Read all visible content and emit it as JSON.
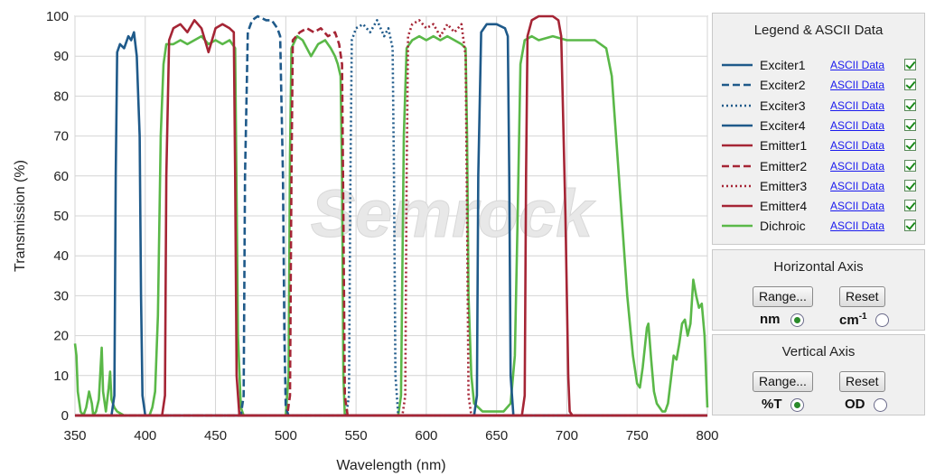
{
  "chart_data": {
    "type": "line",
    "title": "",
    "xlabel": "Wavelength (nm)",
    "ylabel": "Transmission (%)",
    "xlim": [
      350,
      800
    ],
    "ylim": [
      0,
      100
    ],
    "x_ticks": [
      "350",
      "400",
      "450",
      "500",
      "550",
      "600",
      "650",
      "700",
      "750",
      "800"
    ],
    "y_ticks": [
      "0",
      "10",
      "20",
      "30",
      "40",
      "50",
      "60",
      "70",
      "80",
      "90",
      "100"
    ],
    "grid": true,
    "watermark": "Semrock",
    "series": [
      {
        "name": "Exciter1",
        "color": "#1f5a8a",
        "dash": "solid",
        "points": [
          [
            350,
            0
          ],
          [
            376,
            0
          ],
          [
            378,
            5
          ],
          [
            379,
            60
          ],
          [
            380,
            91
          ],
          [
            382,
            93
          ],
          [
            385,
            92
          ],
          [
            388,
            95
          ],
          [
            390,
            94
          ],
          [
            392,
            96
          ],
          [
            394,
            90
          ],
          [
            396,
            70
          ],
          [
            397,
            30
          ],
          [
            398,
            5
          ],
          [
            400,
            0
          ],
          [
            800,
            0
          ]
        ]
      },
      {
        "name": "Exciter2",
        "color": "#1f5a8a",
        "dash": "dashed",
        "points": [
          [
            350,
            0
          ],
          [
            468,
            0
          ],
          [
            470,
            5
          ],
          [
            471,
            60
          ],
          [
            473,
            96
          ],
          [
            476,
            99
          ],
          [
            480,
            100
          ],
          [
            486,
            99
          ],
          [
            490,
            99
          ],
          [
            494,
            97
          ],
          [
            496,
            95
          ],
          [
            498,
            60
          ],
          [
            499,
            20
          ],
          [
            500,
            2
          ],
          [
            502,
            0
          ],
          [
            800,
            0
          ]
        ]
      },
      {
        "name": "Exciter3",
        "color": "#1f5a8a",
        "dash": "dotted",
        "points": [
          [
            350,
            0
          ],
          [
            543,
            0
          ],
          [
            545,
            5
          ],
          [
            546,
            60
          ],
          [
            547,
            94
          ],
          [
            550,
            97
          ],
          [
            555,
            98
          ],
          [
            560,
            96
          ],
          [
            565,
            99
          ],
          [
            570,
            95
          ],
          [
            573,
            97
          ],
          [
            576,
            92
          ],
          [
            577,
            60
          ],
          [
            578,
            10
          ],
          [
            580,
            0
          ],
          [
            800,
            0
          ]
        ]
      },
      {
        "name": "Exciter4",
        "color": "#1f5a8a",
        "dash": "solid",
        "points": [
          [
            350,
            0
          ],
          [
            634,
            0
          ],
          [
            636,
            5
          ],
          [
            637,
            60
          ],
          [
            639,
            96
          ],
          [
            643,
            98
          ],
          [
            650,
            98
          ],
          [
            656,
            97
          ],
          [
            658,
            95
          ],
          [
            659,
            60
          ],
          [
            660,
            10
          ],
          [
            662,
            0
          ],
          [
            800,
            0
          ]
        ]
      },
      {
        "name": "Emitter1",
        "color": "#a52535",
        "dash": "solid",
        "points": [
          [
            350,
            0
          ],
          [
            412,
            0
          ],
          [
            414,
            5
          ],
          [
            415,
            60
          ],
          [
            417,
            94
          ],
          [
            420,
            97
          ],
          [
            425,
            98
          ],
          [
            430,
            96
          ],
          [
            435,
            99
          ],
          [
            440,
            97
          ],
          [
            445,
            91
          ],
          [
            450,
            97
          ],
          [
            455,
            98
          ],
          [
            460,
            97
          ],
          [
            463,
            96
          ],
          [
            464,
            60
          ],
          [
            465,
            10
          ],
          [
            467,
            0
          ],
          [
            800,
            0
          ]
        ]
      },
      {
        "name": "Emitter2",
        "color": "#a52535",
        "dash": "dashed",
        "points": [
          [
            350,
            0
          ],
          [
            501,
            0
          ],
          [
            503,
            5
          ],
          [
            504,
            60
          ],
          [
            505,
            94
          ],
          [
            510,
            96
          ],
          [
            515,
            97
          ],
          [
            520,
            96
          ],
          [
            525,
            97
          ],
          [
            530,
            95
          ],
          [
            535,
            96
          ],
          [
            538,
            93
          ],
          [
            540,
            88
          ],
          [
            541,
            50
          ],
          [
            542,
            5
          ],
          [
            544,
            0
          ],
          [
            800,
            0
          ]
        ]
      },
      {
        "name": "Emitter3",
        "color": "#a52535",
        "dash": "dotted",
        "points": [
          [
            350,
            0
          ],
          [
            583,
            0
          ],
          [
            585,
            5
          ],
          [
            586,
            60
          ],
          [
            587,
            95
          ],
          [
            590,
            98
          ],
          [
            595,
            99
          ],
          [
            600,
            97
          ],
          [
            605,
            98
          ],
          [
            610,
            95
          ],
          [
            615,
            98
          ],
          [
            620,
            96
          ],
          [
            625,
            98
          ],
          [
            628,
            90
          ],
          [
            629,
            50
          ],
          [
            630,
            5
          ],
          [
            632,
            0
          ],
          [
            800,
            0
          ]
        ]
      },
      {
        "name": "Emitter4",
        "color": "#a52535",
        "dash": "solid",
        "points": [
          [
            350,
            0
          ],
          [
            668,
            0
          ],
          [
            670,
            5
          ],
          [
            671,
            60
          ],
          [
            672,
            95
          ],
          [
            675,
            99
          ],
          [
            680,
            100
          ],
          [
            690,
            100
          ],
          [
            694,
            99
          ],
          [
            696,
            95
          ],
          [
            697,
            80
          ],
          [
            699,
            50
          ],
          [
            701,
            10
          ],
          [
            702,
            1
          ],
          [
            704,
            0
          ],
          [
            800,
            0
          ]
        ]
      },
      {
        "name": "Dichroic",
        "color": "#5ab848",
        "dash": "solid",
        "points": [
          [
            350,
            18
          ],
          [
            351,
            15
          ],
          [
            352,
            6
          ],
          [
            354,
            1
          ],
          [
            356,
            0
          ],
          [
            358,
            2
          ],
          [
            360,
            6
          ],
          [
            362,
            3
          ],
          [
            363,
            0
          ],
          [
            365,
            1
          ],
          [
            367,
            4
          ],
          [
            369,
            17
          ],
          [
            370,
            6
          ],
          [
            372,
            1
          ],
          [
            374,
            7
          ],
          [
            375,
            11
          ],
          [
            376,
            4
          ],
          [
            378,
            2
          ],
          [
            380,
            1
          ],
          [
            385,
            0
          ],
          [
            395,
            0
          ],
          [
            403,
            0
          ],
          [
            405,
            2
          ],
          [
            407,
            6
          ],
          [
            409,
            25
          ],
          [
            411,
            70
          ],
          [
            413,
            88
          ],
          [
            415,
            93
          ],
          [
            420,
            93
          ],
          [
            425,
            94
          ],
          [
            430,
            93
          ],
          [
            435,
            94
          ],
          [
            440,
            95
          ],
          [
            445,
            93
          ],
          [
            450,
            94
          ],
          [
            455,
            93
          ],
          [
            460,
            94
          ],
          [
            464,
            92
          ],
          [
            466,
            20
          ],
          [
            468,
            2
          ],
          [
            470,
            0
          ],
          [
            500,
            0
          ],
          [
            502,
            10
          ],
          [
            503,
            65
          ],
          [
            504,
            92
          ],
          [
            508,
            95
          ],
          [
            512,
            94
          ],
          [
            518,
            90
          ],
          [
            523,
            93
          ],
          [
            528,
            94
          ],
          [
            532,
            92
          ],
          [
            535,
            90
          ],
          [
            537,
            88
          ],
          [
            539,
            85
          ],
          [
            540,
            60
          ],
          [
            541,
            10
          ],
          [
            542,
            0
          ],
          [
            580,
            0
          ],
          [
            582,
            5
          ],
          [
            584,
            70
          ],
          [
            586,
            92
          ],
          [
            590,
            94
          ],
          [
            595,
            95
          ],
          [
            600,
            94
          ],
          [
            605,
            95
          ],
          [
            610,
            94
          ],
          [
            615,
            95
          ],
          [
            620,
            94
          ],
          [
            625,
            93
          ],
          [
            628,
            92
          ],
          [
            629,
            70
          ],
          [
            630,
            30
          ],
          [
            632,
            10
          ],
          [
            634,
            3
          ],
          [
            640,
            1
          ],
          [
            645,
            1
          ],
          [
            650,
            1
          ],
          [
            655,
            1
          ],
          [
            660,
            3
          ],
          [
            663,
            15
          ],
          [
            665,
            50
          ],
          [
            667,
            88
          ],
          [
            670,
            94
          ],
          [
            675,
            95
          ],
          [
            680,
            94
          ],
          [
            690,
            95
          ],
          [
            700,
            94
          ],
          [
            710,
            94
          ],
          [
            720,
            94
          ],
          [
            728,
            92
          ],
          [
            732,
            85
          ],
          [
            735,
            70
          ],
          [
            740,
            45
          ],
          [
            743,
            30
          ],
          [
            747,
            15
          ],
          [
            750,
            8
          ],
          [
            752,
            7
          ],
          [
            754,
            12
          ],
          [
            757,
            22
          ],
          [
            758,
            23
          ],
          [
            760,
            14
          ],
          [
            762,
            6
          ],
          [
            764,
            3
          ],
          [
            766,
            2
          ],
          [
            768,
            1
          ],
          [
            770,
            1
          ],
          [
            772,
            3
          ],
          [
            774,
            9
          ],
          [
            776,
            15
          ],
          [
            778,
            14
          ],
          [
            780,
            18
          ],
          [
            782,
            23
          ],
          [
            784,
            24
          ],
          [
            786,
            20
          ],
          [
            788,
            23
          ],
          [
            790,
            34
          ],
          [
            792,
            30
          ],
          [
            794,
            27
          ],
          [
            796,
            28
          ],
          [
            798,
            20
          ],
          [
            800,
            2
          ]
        ]
      }
    ]
  },
  "legend_panel": {
    "title": "Legend & ASCII Data",
    "link_label": "ASCII Data",
    "check_color": "#1a8a1a"
  },
  "horizontal_axis_panel": {
    "title": "Horizontal Axis",
    "range_label": "Range...",
    "reset_label": "Reset",
    "unit1": "nm",
    "unit2_base": "cm",
    "unit2_sup": "-1",
    "selected": "nm"
  },
  "vertical_axis_panel": {
    "title": "Vertical  Axis",
    "range_label": "Range...",
    "reset_label": "Reset",
    "unit1": "%T",
    "unit2": "OD",
    "selected": "%T"
  }
}
